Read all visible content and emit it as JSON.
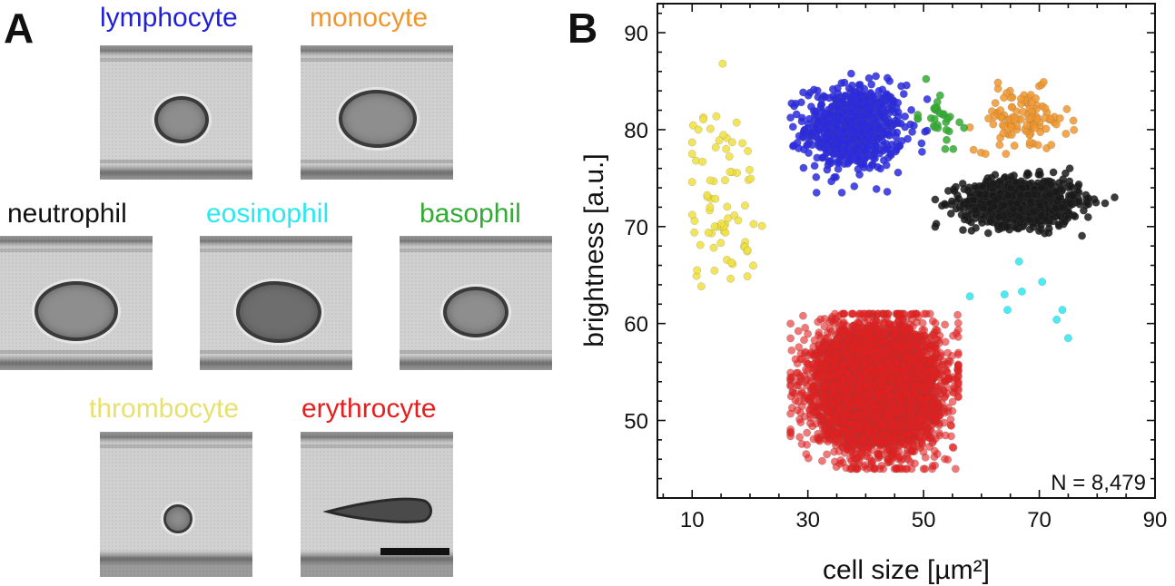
{
  "panel_a": {
    "letter": "A",
    "cells": [
      {
        "key": "lymphocyte",
        "label": "lymphocyte",
        "color": "#1f1fd6"
      },
      {
        "key": "monocyte",
        "label": "monocyte",
        "color": "#f0962e"
      },
      {
        "key": "neutrophil",
        "label": "neutrophil",
        "color": "#111111"
      },
      {
        "key": "eosinophil",
        "label": "eosinophil",
        "color": "#2ae8f0"
      },
      {
        "key": "basophil",
        "label": "basophil",
        "color": "#33aa33"
      },
      {
        "key": "thrombocyte",
        "label": "thrombocyte",
        "color": "#e8e070"
      },
      {
        "key": "erythrocyte",
        "label": "erythrocyte",
        "color": "#e61e1e"
      }
    ]
  },
  "panel_b": {
    "letter": "B",
    "annotation": "N = 8,479"
  },
  "chart_data": {
    "type": "scatter",
    "title": "",
    "xlabel": "cell size [µm²]",
    "ylabel": "brightness [a.u.]",
    "xlim": [
      4,
      90
    ],
    "ylim": [
      42,
      93
    ],
    "xticks": [
      10,
      30,
      50,
      70,
      90
    ],
    "yticks": [
      50,
      60,
      70,
      80,
      90
    ],
    "annotation": "N = 8,479",
    "series": [
      {
        "name": "lymphocyte",
        "color": "#2a2ae0",
        "center": [
          38,
          80.2
        ],
        "spread": [
          4.2,
          2.2
        ],
        "x_range": [
          27,
          56
        ],
        "y_range": [
          73.5,
          85.8
        ],
        "approx_count": 700
      },
      {
        "name": "monocyte",
        "color": "#f0962e",
        "center": [
          67,
          81.0
        ],
        "spread": [
          4.0,
          1.6
        ],
        "x_range": [
          58,
          78
        ],
        "y_range": [
          77.5,
          86.5
        ],
        "approx_count": 110
      },
      {
        "name": "neutrophil",
        "color": "#1a1a1a",
        "center": [
          67,
          72.5
        ],
        "spread": [
          5.0,
          1.2
        ],
        "x_range": [
          52,
          84
        ],
        "y_range": [
          68.5,
          76.0
        ],
        "approx_count": 900
      },
      {
        "name": "eosinophil",
        "color": "#2ae8f0",
        "x": [
          58,
          64,
          64.5,
          66.5,
          67,
          70.5,
          73,
          74,
          75
        ],
        "y": [
          62.8,
          63.0,
          61.4,
          66.4,
          63.3,
          64.3,
          60.4,
          61.4,
          58.5
        ]
      },
      {
        "name": "basophil",
        "color": "#33aa33",
        "center": [
          52.5,
          81.5
        ],
        "spread": [
          1.8,
          1.5
        ],
        "x_range": [
          49,
          57
        ],
        "y_range": [
          78,
          86
        ],
        "approx_count": 30
      },
      {
        "name": "thrombocyte",
        "color": "#f0e040",
        "center": [
          15,
          73
        ],
        "spread": [
          3.2,
          4.8
        ],
        "x_range": [
          10,
          23
        ],
        "y_range": [
          61,
          91
        ],
        "approx_count": 75
      },
      {
        "name": "erythrocyte",
        "color": "#e61e1e",
        "center": [
          42,
          53.5
        ],
        "spread": [
          5.0,
          3.0
        ],
        "x_range": [
          27,
          56
        ],
        "y_range": [
          45,
          61
        ],
        "approx_count": 6500
      }
    ]
  }
}
